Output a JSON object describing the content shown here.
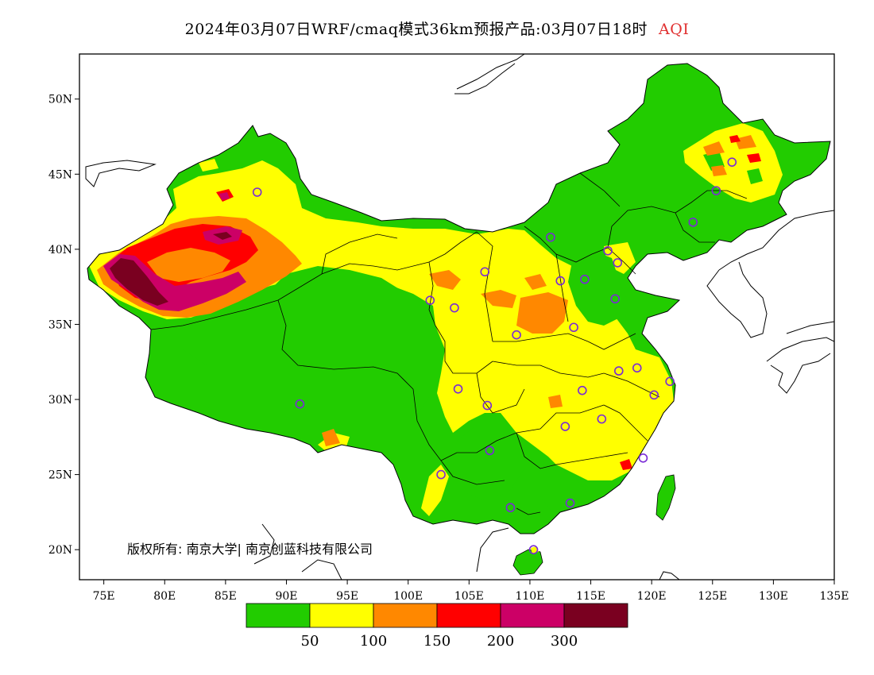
{
  "title": {
    "main": "2024年03月07日WRF/cmaq模式36km预报产品:03月07日18时",
    "variable": "AQI"
  },
  "axes": {
    "lon_ticks": [
      "75E",
      "80E",
      "85E",
      "90E",
      "95E",
      "100E",
      "105E",
      "110E",
      "115E",
      "120E",
      "125E",
      "130E",
      "135E"
    ],
    "lat_ticks": [
      "20N",
      "25N",
      "30N",
      "35N",
      "40N",
      "45N",
      "50N"
    ],
    "lon_range": [
      73,
      135
    ],
    "lat_range": [
      18,
      53
    ]
  },
  "legend": {
    "colors": [
      "#22cc00",
      "#ffff00",
      "#ff8800",
      "#ff0000",
      "#cc0066",
      "#7a0020"
    ],
    "labels": [
      "50",
      "100",
      "150",
      "200",
      "300"
    ]
  },
  "copyright": "版权所有: 南京大学| 南京创蓝科技有限公司",
  "stations": [
    [
      87.6,
      43.8
    ],
    [
      91.1,
      29.7
    ],
    [
      101.8,
      36.6
    ],
    [
      103.8,
      36.1
    ],
    [
      106.3,
      38.5
    ],
    [
      111.7,
      40.8
    ],
    [
      112.5,
      37.9
    ],
    [
      114.5,
      38.0
    ],
    [
      116.4,
      39.9
    ],
    [
      117.2,
      39.1
    ],
    [
      117.0,
      36.7
    ],
    [
      113.6,
      34.8
    ],
    [
      108.9,
      34.3
    ],
    [
      104.1,
      30.7
    ],
    [
      106.5,
      29.6
    ],
    [
      106.7,
      26.6
    ],
    [
      102.7,
      25.0
    ],
    [
      108.4,
      22.8
    ],
    [
      113.3,
      23.1
    ],
    [
      110.3,
      20.0
    ],
    [
      112.9,
      28.2
    ],
    [
      115.9,
      28.7
    ],
    [
      114.3,
      30.6
    ],
    [
      117.3,
      31.9
    ],
    [
      118.8,
      32.1
    ],
    [
      120.2,
      30.3
    ],
    [
      121.5,
      31.2
    ],
    [
      119.3,
      26.1
    ],
    [
      123.4,
      41.8
    ],
    [
      125.3,
      43.9
    ],
    [
      126.6,
      45.8
    ]
  ]
}
